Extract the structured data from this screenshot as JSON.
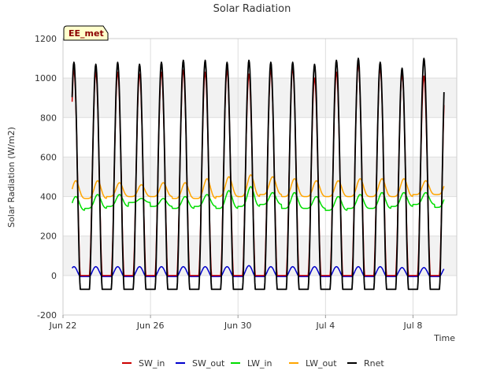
{
  "chart_data": {
    "type": "line",
    "title": "Solar Radiation",
    "xlabel": "Time",
    "ylabel": "Solar Radiation (W/m2)",
    "station_label": "EE_met",
    "xlim": [
      "2024-06-22",
      "2024-07-10"
    ],
    "ylim": [
      -200,
      1200
    ],
    "x_ticks": [
      {
        "date": "2024-06-22",
        "label": "Jun 22"
      },
      {
        "date": "2024-06-26",
        "label": "Jun 26"
      },
      {
        "date": "2024-06-30",
        "label": "Jun 30"
      },
      {
        "date": "2024-07-04",
        "label": "Jul 4"
      },
      {
        "date": "2024-07-08",
        "label": "Jul 8"
      }
    ],
    "y_ticks": [
      -200,
      0,
      200,
      400,
      600,
      800,
      1000,
      1200
    ],
    "grid": true,
    "legend_position": "bottom",
    "days": [
      "2024-06-22",
      "2024-06-23",
      "2024-06-24",
      "2024-06-25",
      "2024-06-26",
      "2024-06-27",
      "2024-06-28",
      "2024-06-29",
      "2024-06-30",
      "2024-07-01",
      "2024-07-02",
      "2024-07-03",
      "2024-07-04",
      "2024-07-05",
      "2024-07-06",
      "2024-07-07",
      "2024-07-08",
      "2024-07-09"
    ],
    "data_start": "2024-06-22 10:00",
    "data_end": "2024-07-09 10:00",
    "series": [
      {
        "name": "SW_in",
        "color": "#cc0000",
        "daily_peak": [
          1040,
          1030,
          1030,
          1020,
          1030,
          1040,
          1030,
          1040,
          1020,
          1040,
          1050,
          1000,
          1030,
          1070,
          1050,
          1020,
          1010,
          1020
        ],
        "night_value": 0
      },
      {
        "name": "SW_out",
        "color": "#0000cc",
        "daily_peak": [
          45,
          45,
          45,
          45,
          45,
          45,
          45,
          45,
          50,
          45,
          45,
          45,
          45,
          45,
          45,
          40,
          40,
          40
        ],
        "night_value": -5
      },
      {
        "name": "LW_in",
        "color": "#00dd00",
        "daily_peak": [
          400,
          410,
          410,
          390,
          390,
          400,
          410,
          430,
          450,
          420,
          420,
          400,
          400,
          410,
          420,
          420,
          420,
          420
        ],
        "night_min": [
          330,
          340,
          350,
          370,
          350,
          340,
          350,
          340,
          350,
          360,
          340,
          340,
          330,
          340,
          340,
          350,
          360,
          345
        ]
      },
      {
        "name": "LW_out",
        "color": "#ffa500",
        "daily_peak": [
          480,
          480,
          470,
          460,
          470,
          470,
          490,
          500,
          510,
          500,
          490,
          480,
          480,
          490,
          490,
          490,
          480,
          490
        ],
        "night_min": [
          390,
          390,
          400,
          400,
          400,
          390,
          390,
          400,
          400,
          410,
          400,
          400,
          400,
          400,
          400,
          400,
          410,
          410
        ]
      },
      {
        "name": "Rnet",
        "color": "#000000",
        "daily_peak": [
          1080,
          1070,
          1080,
          1070,
          1080,
          1090,
          1090,
          1080,
          1090,
          1080,
          1080,
          1070,
          1090,
          1100,
          1080,
          1050,
          1100,
          1110
        ],
        "night_value": -70
      }
    ]
  }
}
